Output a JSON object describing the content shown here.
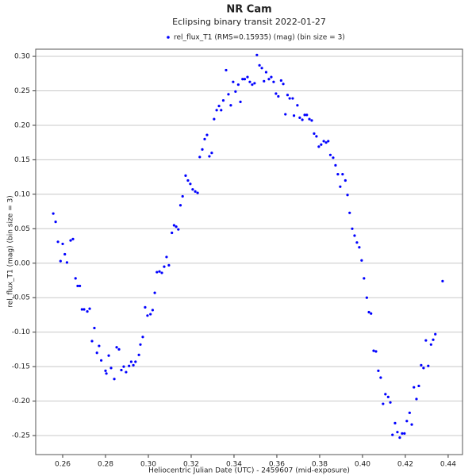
{
  "chart_data": {
    "type": "scatter",
    "title": "NR Cam",
    "subtitle": "Eclipsing binary transit 2022-01-27",
    "x_label": "Heliocentric Julian Date (UTC) - 2459607 (mid-exposure)",
    "y_label": "rel_flux_T1 (mag) (bin size = 3)",
    "xlim": [
      0.2474,
      0.4467
    ],
    "ylim": [
      -0.2776,
      0.3104
    ],
    "xticks": [
      0.26,
      0.28,
      {
        "value": 0.3,
        "label": "0.30"
      },
      0.32,
      0.34,
      0.36,
      0.38,
      {
        "value": 0.4,
        "label": "0.40"
      },
      0.42,
      0.44
    ],
    "yticks": [
      {
        "value": 0.3,
        "label": "0.30"
      },
      0.25,
      {
        "value": 0.2,
        "label": "0.20"
      },
      0.15,
      {
        "value": 0.1,
        "label": "0.10"
      },
      0.05,
      {
        "value": 0,
        "label": "0.00"
      },
      -0.05,
      {
        "value": -0.1,
        "label": "-0.10"
      },
      -0.15,
      {
        "value": -0.2,
        "label": "-0.20"
      },
      -0.25
    ],
    "grid": true,
    "legend": "top",
    "x": [
      0.2556,
      0.2567,
      0.2578,
      0.259,
      0.26,
      0.261,
      0.262,
      0.2637,
      0.2648,
      0.266,
      0.267,
      0.268,
      0.269,
      0.27,
      0.2715,
      0.2726,
      0.2737,
      0.2748,
      0.276,
      0.277,
      0.278,
      0.28,
      0.2804,
      0.2815,
      0.2826,
      0.2841,
      0.2852,
      0.2863,
      0.2874,
      0.2885,
      0.2896,
      0.291,
      0.292,
      0.293,
      0.294,
      0.2956,
      0.2963,
      0.2974,
      0.2985,
      0.2996,
      0.301,
      0.302,
      0.303,
      0.304,
      0.3052,
      0.3063,
      0.3074,
      0.3085,
      0.3096,
      0.311,
      0.312,
      0.313,
      0.314,
      0.315,
      0.316,
      0.3174,
      0.3185,
      0.3196,
      0.3207,
      0.3219,
      0.323,
      0.324,
      0.3252,
      0.3263,
      0.3274,
      0.3285,
      0.3296,
      0.3307,
      0.3319,
      0.333,
      0.334,
      0.335,
      0.3363,
      0.3374,
      0.3385,
      0.3396,
      0.3407,
      0.342,
      0.343,
      0.344,
      0.345,
      0.3463,
      0.3474,
      0.3485,
      0.3496,
      0.3507,
      0.3519,
      0.353,
      0.354,
      0.355,
      0.3563,
      0.3574,
      0.3585,
      0.3596,
      0.3607,
      0.362,
      0.363,
      0.364,
      0.365,
      0.366,
      0.3674,
      0.368,
      0.3696,
      0.3707,
      0.3719,
      0.373,
      0.374,
      0.3752,
      0.3763,
      0.3774,
      0.3785,
      0.3796,
      0.3807,
      0.3819,
      0.383,
      0.384,
      0.385,
      0.3863,
      0.3874,
      0.3885,
      0.3896,
      0.3907,
      0.392,
      0.393,
      0.394,
      0.3952,
      0.3963,
      0.3974,
      0.3985,
      0.3996,
      0.4007,
      0.402,
      0.403,
      0.404,
      0.4052,
      0.4063,
      0.4074,
      0.4085,
      0.4096,
      0.4107,
      0.412,
      0.413,
      0.414,
      0.4152,
      0.4163,
      0.4174,
      0.4185,
      0.4196,
      0.4207,
      0.422,
      0.423,
      0.424,
      0.4252,
      0.4263,
      0.4274,
      0.4285,
      0.4296,
      0.4307,
      0.432,
      0.433,
      0.434,
      0.4374
    ],
    "series": [
      {
        "name": "rel_flux_T1 (RMS=0.15935) (mag) (bin size = 3)",
        "color": "#0000ff",
        "values": [
          0.072,
          0.06,
          0.031,
          0.003,
          0.028,
          0.013,
          0.001,
          0.033,
          0.035,
          -0.022,
          -0.033,
          -0.033,
          -0.067,
          -0.067,
          -0.07,
          -0.066,
          -0.113,
          -0.094,
          -0.13,
          -0.12,
          -0.141,
          -0.156,
          -0.16,
          -0.134,
          -0.152,
          -0.168,
          -0.122,
          -0.125,
          -0.155,
          -0.15,
          -0.158,
          -0.149,
          -0.143,
          -0.148,
          -0.143,
          -0.133,
          -0.118,
          -0.107,
          -0.064,
          -0.076,
          -0.074,
          -0.068,
          -0.043,
          -0.013,
          -0.012,
          -0.014,
          -0.005,
          0.009,
          -0.003,
          0.044,
          0.055,
          0.053,
          0.049,
          0.084,
          0.097,
          0.127,
          0.12,
          0.115,
          0.107,
          0.104,
          0.102,
          0.154,
          0.165,
          0.18,
          0.186,
          0.155,
          0.16,
          0.209,
          0.222,
          0.228,
          0.222,
          0.236,
          0.28,
          0.245,
          0.229,
          0.263,
          0.249,
          0.259,
          0.234,
          0.267,
          0.267,
          0.27,
          0.263,
          0.259,
          0.261,
          0.302,
          0.287,
          0.283,
          0.264,
          0.277,
          0.267,
          0.27,
          0.263,
          0.246,
          0.242,
          0.265,
          0.26,
          0.216,
          0.244,
          0.239,
          0.239,
          0.214,
          0.229,
          0.211,
          0.208,
          0.215,
          0.215,
          0.209,
          0.207,
          0.188,
          0.184,
          0.169,
          0.172,
          0.177,
          0.175,
          0.177,
          0.157,
          0.153,
          0.142,
          0.129,
          0.111,
          0.129,
          0.12,
          0.099,
          0.073,
          0.05,
          0.04,
          0.03,
          0.023,
          0.004,
          -0.022,
          -0.05,
          -0.071,
          -0.073,
          -0.127,
          -0.128,
          -0.156,
          -0.166,
          -0.204,
          -0.19,
          -0.194,
          -0.202,
          -0.249,
          -0.232,
          -0.245,
          -0.253,
          -0.247,
          -0.247,
          -0.229,
          -0.217,
          -0.234,
          -0.18,
          -0.197,
          -0.178,
          -0.148,
          -0.152,
          -0.112,
          -0.149,
          -0.118,
          -0.111,
          -0.103,
          -0.026
        ]
      }
    ]
  }
}
